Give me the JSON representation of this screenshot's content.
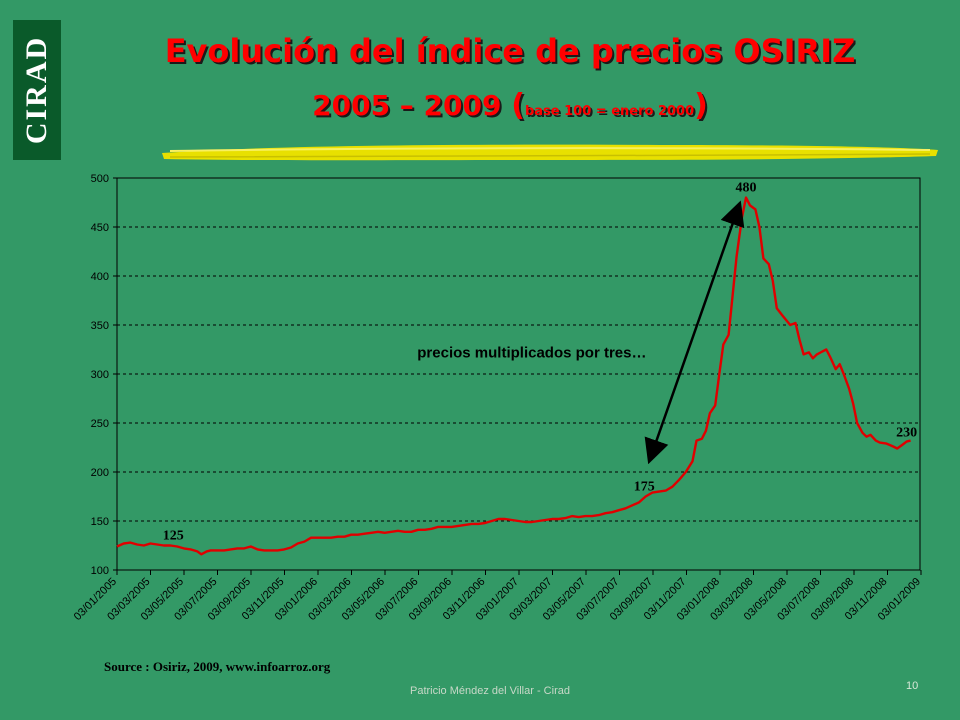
{
  "logo": {
    "text": "CIRAD"
  },
  "title": {
    "line1": "Evolución del índice de precios OSIRIZ",
    "line2_main": "2005 – 2009 ",
    "line2_open": "(",
    "line2_small": "base 100 = enero 2000",
    "line2_close": ")"
  },
  "source": "Source : Osiriz, 2009, www.infoarroz.org",
  "footer": {
    "author": "Patricio Méndez del Villar - Cirad",
    "page": "10"
  },
  "chart_data": {
    "type": "line",
    "title": "",
    "xlabel": "",
    "ylabel": "",
    "ylim": [
      100,
      500
    ],
    "yticks": [
      100,
      150,
      200,
      250,
      300,
      350,
      400,
      450,
      500
    ],
    "grid": "horizontal dashed",
    "x_ticks": [
      "03/01/2005",
      "03/03/2005",
      "03/05/2005",
      "03/07/2005",
      "03/09/2005",
      "03/11/2005",
      "03/01/2006",
      "03/03/2006",
      "03/05/2006",
      "03/07/2006",
      "03/09/2006",
      "03/11/2006",
      "03/01/2007",
      "03/03/2007",
      "03/05/2007",
      "03/07/2007",
      "03/09/2007",
      "03/11/2007",
      "03/01/2008",
      "03/03/2008",
      "03/05/2008",
      "03/07/2008",
      "03/09/2008",
      "03/11/2008",
      "03/01/2009"
    ],
    "series": [
      {
        "color": "#e00000",
        "values": [
          [
            0,
            124
          ],
          [
            0.5,
            127
          ],
          [
            1,
            128
          ],
          [
            1.5,
            126
          ],
          [
            2,
            125
          ],
          [
            2.5,
            127
          ],
          [
            3,
            126
          ],
          [
            3.5,
            125
          ],
          [
            4,
            125
          ],
          [
            4.5,
            124
          ],
          [
            5,
            122
          ],
          [
            5.5,
            121
          ],
          [
            6,
            119
          ],
          [
            6.3,
            116
          ],
          [
            6.7,
            119
          ],
          [
            7,
            120
          ],
          [
            7.5,
            120
          ],
          [
            8,
            120
          ],
          [
            8.5,
            121
          ],
          [
            9,
            122
          ],
          [
            9.5,
            122
          ],
          [
            10,
            124
          ],
          [
            10.5,
            121
          ],
          [
            11,
            120
          ],
          [
            11.5,
            120
          ],
          [
            12,
            120
          ],
          [
            12.5,
            121
          ],
          [
            13,
            123
          ],
          [
            13.5,
            127
          ],
          [
            14,
            129
          ],
          [
            14.5,
            133
          ],
          [
            15,
            133
          ],
          [
            15.5,
            133
          ],
          [
            16,
            133
          ],
          [
            16.5,
            134
          ],
          [
            17,
            134
          ],
          [
            17.5,
            136
          ],
          [
            18,
            136
          ],
          [
            18.5,
            137
          ],
          [
            19,
            138
          ],
          [
            19.5,
            139
          ],
          [
            20,
            138
          ],
          [
            20.5,
            139
          ],
          [
            21,
            140
          ],
          [
            21.5,
            139
          ],
          [
            22,
            139
          ],
          [
            22.5,
            141
          ],
          [
            23,
            141
          ],
          [
            23.5,
            142
          ],
          [
            24,
            144
          ],
          [
            24.5,
            144
          ],
          [
            25,
            144
          ],
          [
            25.5,
            145
          ],
          [
            26,
            146
          ],
          [
            26.5,
            147
          ],
          [
            27,
            147
          ],
          [
            27.5,
            148
          ],
          [
            28,
            150
          ],
          [
            28.5,
            152
          ],
          [
            29,
            152
          ],
          [
            29.5,
            151
          ],
          [
            30,
            150
          ],
          [
            30.5,
            149
          ],
          [
            31,
            149
          ],
          [
            31.5,
            150
          ],
          [
            32,
            151
          ],
          [
            32.5,
            152
          ],
          [
            33,
            152
          ],
          [
            33.5,
            153
          ],
          [
            34,
            155
          ],
          [
            34.5,
            154
          ],
          [
            35,
            155
          ],
          [
            35.5,
            155
          ],
          [
            36,
            156
          ],
          [
            36.5,
            158
          ],
          [
            37,
            159
          ],
          [
            37.5,
            161
          ],
          [
            38,
            163
          ],
          [
            38.5,
            166
          ],
          [
            39,
            169
          ],
          [
            39.5,
            175
          ],
          [
            40,
            179
          ],
          [
            40.5,
            180
          ],
          [
            41,
            181
          ],
          [
            41.5,
            185
          ],
          [
            42,
            192
          ],
          [
            42.5,
            200
          ],
          [
            43,
            211
          ],
          [
            43.3,
            232
          ],
          [
            43.7,
            234
          ],
          [
            44,
            242
          ],
          [
            44.3,
            260
          ],
          [
            44.7,
            268
          ],
          [
            45,
            300
          ],
          [
            45.3,
            330
          ],
          [
            45.7,
            340
          ],
          [
            46,
            380
          ],
          [
            46.3,
            420
          ],
          [
            46.7,
            460
          ],
          [
            47,
            480
          ],
          [
            47.3,
            472
          ],
          [
            47.7,
            468
          ],
          [
            48,
            450
          ],
          [
            48.3,
            418
          ],
          [
            48.7,
            412
          ],
          [
            49,
            395
          ],
          [
            49.3,
            367
          ],
          [
            49.7,
            360
          ],
          [
            50,
            355
          ],
          [
            50.3,
            350
          ],
          [
            50.7,
            352
          ],
          [
            51,
            335
          ],
          [
            51.3,
            320
          ],
          [
            51.7,
            322
          ],
          [
            52,
            316
          ],
          [
            52.3,
            320
          ],
          [
            52.7,
            323
          ],
          [
            53,
            325
          ],
          [
            53.3,
            317
          ],
          [
            53.7,
            305
          ],
          [
            54,
            310
          ],
          [
            54.3,
            300
          ],
          [
            54.7,
            285
          ],
          [
            55,
            270
          ],
          [
            55.3,
            250
          ],
          [
            55.7,
            240
          ],
          [
            56,
            236
          ],
          [
            56.3,
            238
          ],
          [
            56.7,
            232
          ],
          [
            57,
            230
          ],
          [
            57.5,
            229
          ],
          [
            58,
            226
          ],
          [
            58.3,
            224
          ],
          [
            58.7,
            228
          ],
          [
            59,
            231
          ],
          [
            59.3,
            232
          ]
        ]
      }
    ],
    "annotations": [
      {
        "text": "125",
        "x": 4.2,
        "y": 125
      },
      {
        "text": "175",
        "x": 39.4,
        "y": 175
      },
      {
        "text": "480",
        "x": 47,
        "y": 480
      },
      {
        "text": "230",
        "x": 59,
        "y": 230
      },
      {
        "text": "precios multiplicados por tres…",
        "x": 31,
        "y": 317
      }
    ],
    "arrow": {
      "from": [
        40,
        220
      ],
      "to": [
        46.3,
        465
      ]
    }
  }
}
